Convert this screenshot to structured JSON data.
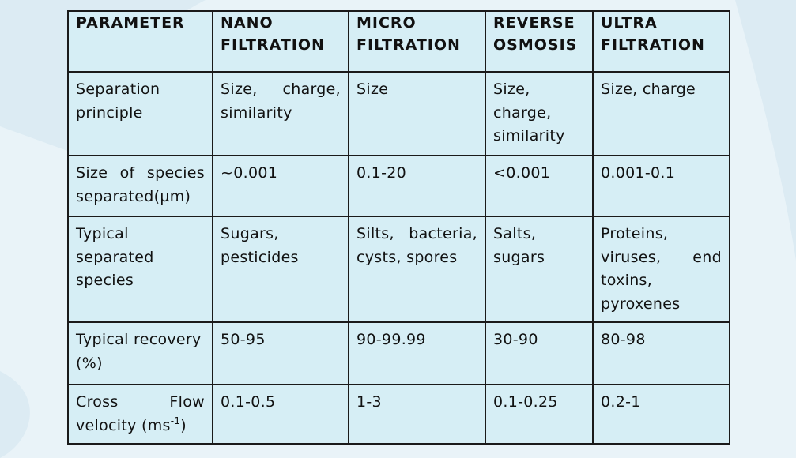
{
  "table": {
    "headers": [
      "PARAMETER",
      "NANO FILTRATION",
      "MICRO FILTRATION",
      "REVERSE OSMOSIS",
      "ULTRA FILTRATION"
    ],
    "rows": [
      {
        "parameter": "Separation principle",
        "nano": "Size, charge, similarity",
        "micro": "Size",
        "reverse": "Size, charge, similarity",
        "ultra": "Size, charge"
      },
      {
        "parameter": "Size of species separated(µm)",
        "nano": "~0.001",
        "micro": "0.1-20",
        "reverse": "<0.001",
        "ultra": "0.001-0.1"
      },
      {
        "parameter": "Typical separated species",
        "nano": "Sugars, pesticides",
        "micro": "Silts, bacteria, cysts, spores",
        "reverse": "Salts, sugars",
        "ultra": "Proteins, viruses, end toxins, pyroxenes"
      },
      {
        "parameter": "Typical recovery (%)",
        "nano": "50-95",
        "micro": "90-99.99",
        "reverse": "30-90",
        "ultra": "80-98"
      },
      {
        "parameter": "Cross Flow velocity (ms",
        "parameter_sup": "-1",
        "parameter_tail": ")",
        "nano": "0.1-0.5",
        "micro": "1-3",
        "reverse": "0.1-0.25",
        "ultra": "0.2-1"
      }
    ]
  },
  "colors": {
    "cell_background": "#d6eef5",
    "page_background": "#e9f3f8",
    "border": "#1a1a1a"
  }
}
